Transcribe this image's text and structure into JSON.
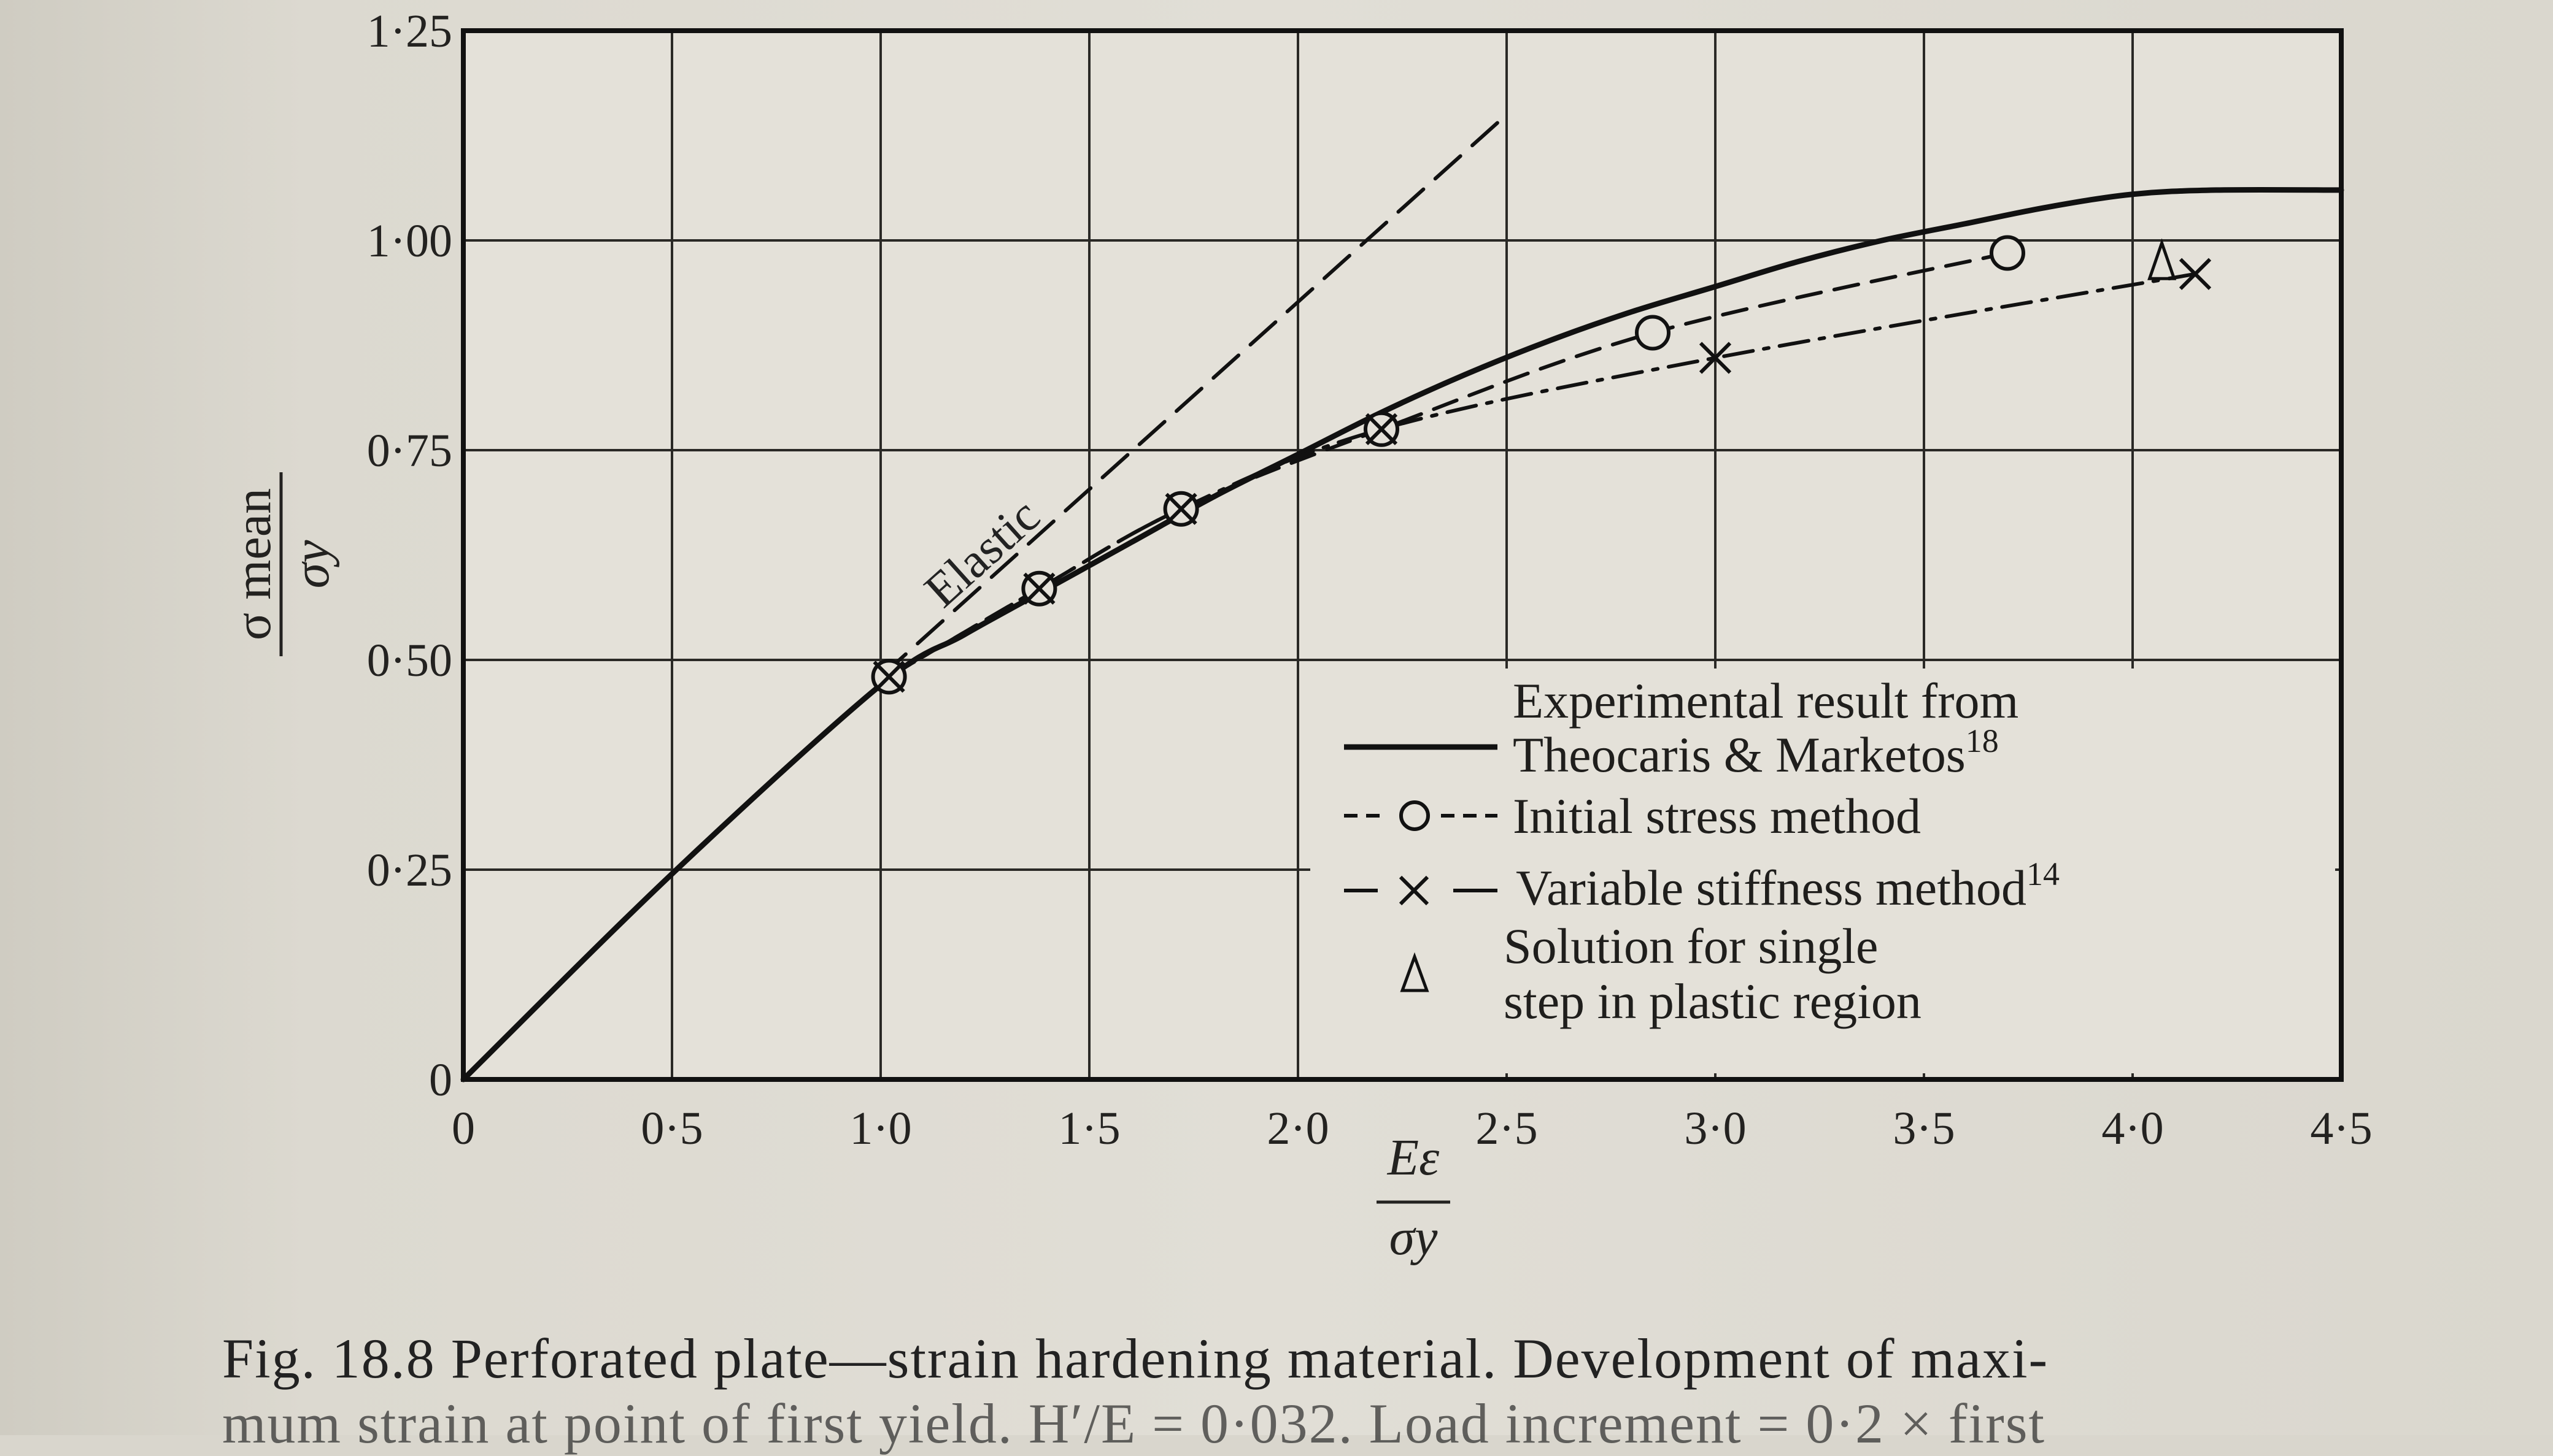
{
  "chart_data": {
    "type": "line",
    "ylabel_num": "σ mean",
    "ylabel_den": "σy",
    "xlabel_num": "Eε",
    "xlabel_den": "σy",
    "xlim": [
      0,
      4.5
    ],
    "ylim": [
      0,
      1.25
    ],
    "x_ticks": [
      0,
      0.5,
      1.0,
      1.5,
      2.0,
      2.5,
      3.0,
      3.5,
      4.0,
      4.5
    ],
    "x_tick_labels": [
      "0",
      "0·5",
      "1·0",
      "1·5",
      "2·0",
      "2·5",
      "3·0",
      "3·5",
      "4·0",
      "4·5"
    ],
    "y_ticks": [
      0,
      0.25,
      0.5,
      0.75,
      1.0,
      1.25
    ],
    "y_tick_labels": [
      "0",
      "0·25",
      "0·50",
      "0·75",
      "1·00",
      "1·25"
    ],
    "grid": true,
    "annotation": "Elastic",
    "series": [
      {
        "name": "Experimental result from Theocaris & Marketos",
        "style": "solid",
        "x": [
          0,
          0.5,
          1.0,
          1.2,
          1.4,
          1.6,
          1.8,
          2.0,
          2.2,
          2.4,
          2.6,
          2.8,
          3.0,
          3.2,
          3.4,
          3.6,
          3.8,
          4.0,
          4.2,
          4.5
        ],
        "y": [
          0,
          0.245,
          0.47,
          0.53,
          0.585,
          0.64,
          0.695,
          0.745,
          0.795,
          0.84,
          0.88,
          0.915,
          0.945,
          0.975,
          1.0,
          1.02,
          1.04,
          1.055,
          1.06,
          1.06
        ]
      },
      {
        "name": "Initial stress method",
        "style": "dashed-circle",
        "x": [
          1.02,
          1.38,
          1.72,
          2.2,
          2.85,
          3.7
        ],
        "y": [
          0.48,
          0.585,
          0.68,
          0.775,
          0.89,
          0.985
        ]
      },
      {
        "name": "Variable stiffness method",
        "style": "dashdot-cross",
        "x": [
          1.02,
          1.38,
          1.72,
          2.2,
          3.0,
          4.15
        ],
        "y": [
          0.48,
          0.585,
          0.68,
          0.775,
          0.86,
          0.96
        ]
      },
      {
        "name": "Solution for single step in plastic region",
        "style": "triangle",
        "x": [
          4.07
        ],
        "y": [
          0.975
        ]
      },
      {
        "name": "Elastic",
        "style": "long-dash",
        "x": [
          1.0,
          2.5
        ],
        "y": [
          0.48,
          1.15
        ]
      }
    ]
  },
  "legend": {
    "experimental_l1": "Experimental result from",
    "experimental_l2": "Theocaris & Marketos",
    "experimental_ref": "18",
    "initial_stress": "Initial stress method",
    "variable_stiffness": "Variable stiffness method",
    "variable_ref": "14",
    "single_step_l1": "Solution for single",
    "single_step_l2": "step in plastic region"
  },
  "caption": {
    "line1": "Fig. 18.8   Perforated plate—strain hardening material. Development of maxi-",
    "line2": "mum strain at point of first yield. H′/E = 0·032. Load increment = 0·2 × first"
  }
}
